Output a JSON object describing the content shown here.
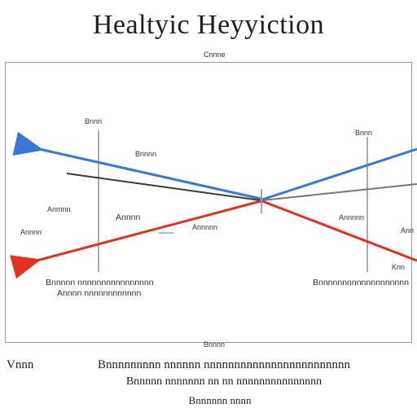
{
  "title": "Healtyic Heyyiction",
  "subtitle_top": "Cnnne",
  "bottom_axis_label": "Bnnnn",
  "left_side_labels": [
    "Bnnn",
    "Anmnn",
    "Annnn"
  ],
  "right_side_labels": [
    "Bnnn",
    "Annnnn",
    "Ann",
    "Knn"
  ],
  "center_labels": [
    "Bnnnn",
    "Annnn",
    "Annnnn"
  ],
  "left_caption_lines": [
    "Bnnnnn nnnnnnnnnnnnnnnn",
    "Annnn nnnnnnnnnnnn"
  ],
  "right_caption_lines": [
    "Bnnnnnnnnnnnnnnnnnnn"
  ],
  "footer_left": "Vnnn",
  "footer_lines": [
    "Bnnnnnnnnn nnnnnn nnnnnnnnnnnnnnnnnnnnnnnn",
    "Bnnnnn nnnnnnn nn nn nnnnnnnnnnnnnnn",
    "Bnnnnnn nnnn"
  ],
  "colors": {
    "blue": "#3a78d8",
    "red": "#e2321f",
    "dark": "#3a3a3a",
    "gray": "#7a7a7a"
  }
}
